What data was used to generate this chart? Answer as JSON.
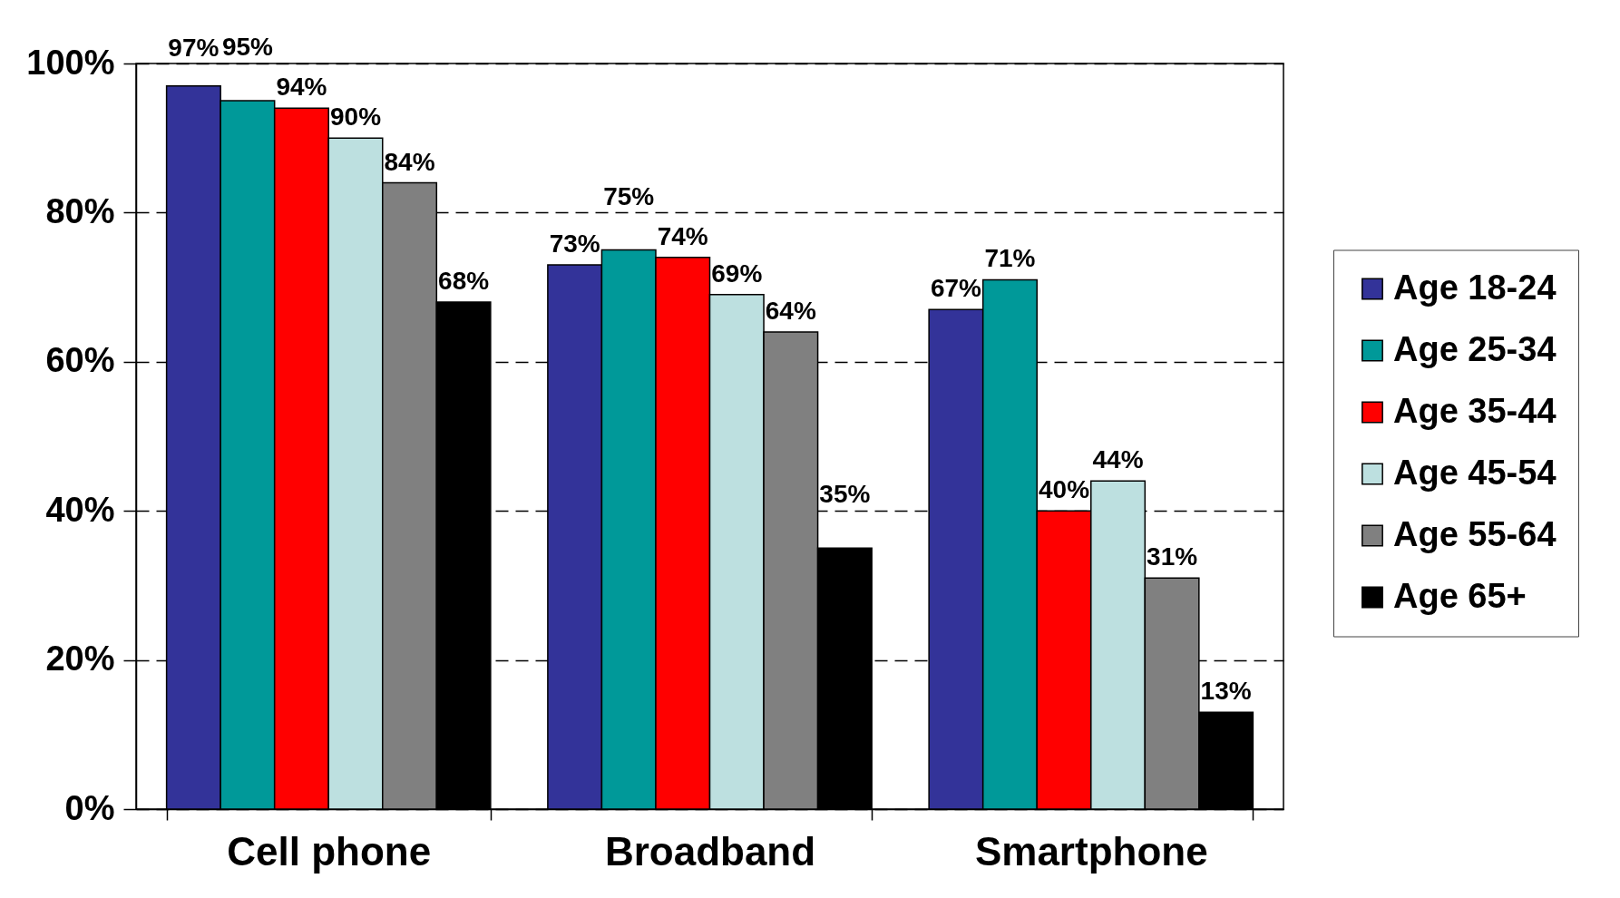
{
  "chart_data": {
    "type": "bar",
    "categories": [
      "Cell phone",
      "Broadband",
      "Smartphone"
    ],
    "series": [
      {
        "name": "Age 18-24",
        "color": "#333399",
        "values": [
          97,
          73,
          67
        ],
        "value_labels": [
          "97%",
          "73%",
          "67%"
        ]
      },
      {
        "name": "Age 25-34",
        "color": "#009999",
        "values": [
          95,
          75,
          71
        ],
        "value_labels": [
          "95%",
          "75%",
          "71%"
        ]
      },
      {
        "name": "Age 35-44",
        "color": "#ff0000",
        "values": [
          94,
          74,
          40
        ],
        "value_labels": [
          "94%",
          "74%",
          "40%"
        ]
      },
      {
        "name": "Age 45-54",
        "color": "#bde0e0",
        "values": [
          90,
          69,
          44
        ],
        "value_labels": [
          "90%",
          "69%",
          "44%"
        ]
      },
      {
        "name": "Age 55-64",
        "color": "#808080",
        "values": [
          84,
          64,
          31
        ],
        "value_labels": [
          "84%",
          "64%",
          "31%"
        ]
      },
      {
        "name": "Age 65+",
        "color": "#000000",
        "values": [
          68,
          35,
          13
        ],
        "value_labels": [
          "68%",
          "35%",
          "13%"
        ]
      }
    ],
    "ylim": [
      0,
      100
    ],
    "yticks": [
      {
        "value": 0,
        "label": "0%"
      },
      {
        "value": 20,
        "label": "20%"
      },
      {
        "value": 40,
        "label": "40%"
      },
      {
        "value": 60,
        "label": "60%"
      },
      {
        "value": 80,
        "label": "80%"
      },
      {
        "value": 100,
        "label": "100%"
      }
    ],
    "grid": "y",
    "legend": "right"
  }
}
